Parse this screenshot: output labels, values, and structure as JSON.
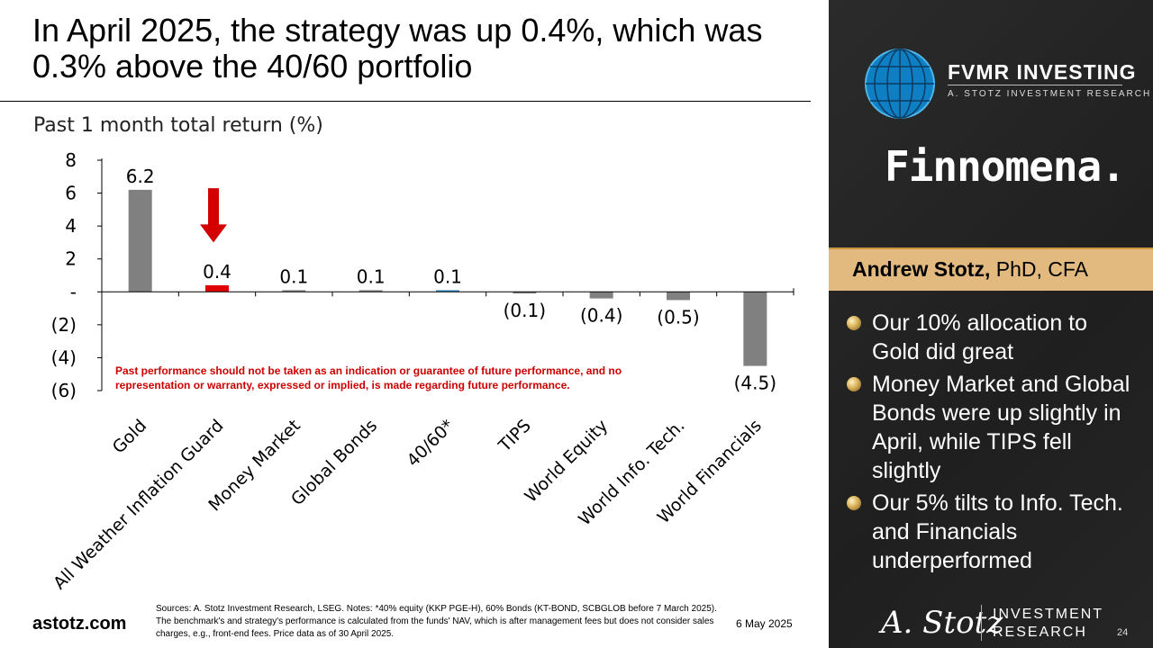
{
  "header": {
    "title": "In April 2025, the strategy was up 0.4%, which was 0.3% above the 40/60 portfolio"
  },
  "disclaimer": "Past performance should not be taken as an indication or guarantee of future performance, and no representation or warranty, expressed or implied, is made regarding future performance.",
  "footer": {
    "domain": "astotz.com",
    "sources": "Sources: A. Stotz Investment Research, LSEG. Notes: *40% equity (KKP PGE-H), 60% Bonds (KT-BOND, SCBGLOB before 7 March 2025). The benchmark's and strategy's performance is calculated from the funds' NAV, which is after management fees but does not consider sales charges, e.g., front-end fees. Price data as of 30 April 2025.",
    "date": "6 May 2025",
    "page": "24"
  },
  "sidebar": {
    "logo_name": "FVMR INVESTING",
    "logo_sub": "A. STOTZ INVESTMENT RESEARCH",
    "partner": "Finnomena.",
    "author_name": "Andrew Stotz,",
    "author_title": " PhD, CFA",
    "bullets": [
      "Our 10% allocation to Gold did great",
      "Money Market and Global Bonds were up slightly in April, while TIPS fell slightly",
      "Our 5% tilts to Info. Tech. and Financials underperformed"
    ],
    "signature": "A. Stotz",
    "brand_line1": "INVESTMENT",
    "brand_line2": "RESEARCH"
  },
  "chart_data": {
    "type": "bar",
    "title": "Past 1 month total return (%)",
    "categories": [
      "Gold",
      "All Weather Inflation Guard",
      "Money Market",
      "Global Bonds",
      "40/60*",
      "TIPS",
      "World Equity",
      "World Info. Tech.",
      "World Financials"
    ],
    "values": [
      6.2,
      0.4,
      0.1,
      0.1,
      0.1,
      -0.1,
      -0.4,
      -0.5,
      -4.5
    ],
    "value_labels": [
      "6.2",
      "0.4",
      "0.1",
      "0.1",
      "0.1",
      "(0.1)",
      "(0.4)",
      "(0.5)",
      "(4.5)"
    ],
    "colors": [
      "#808080",
      "#e00000",
      "#808080",
      "#808080",
      "#2e86c1",
      "#808080",
      "#808080",
      "#808080",
      "#808080"
    ],
    "ylim": [
      -6,
      8
    ],
    "yticks": [
      8,
      6,
      4,
      2,
      0,
      -2,
      -4,
      -6
    ],
    "ytick_labels": [
      "8",
      "6",
      "4",
      "2",
      "-",
      "(2)",
      "(4)",
      "(6)"
    ],
    "highlight_category": "All Weather Inflation Guard",
    "highlight_color": "#d40000",
    "grid": false
  }
}
